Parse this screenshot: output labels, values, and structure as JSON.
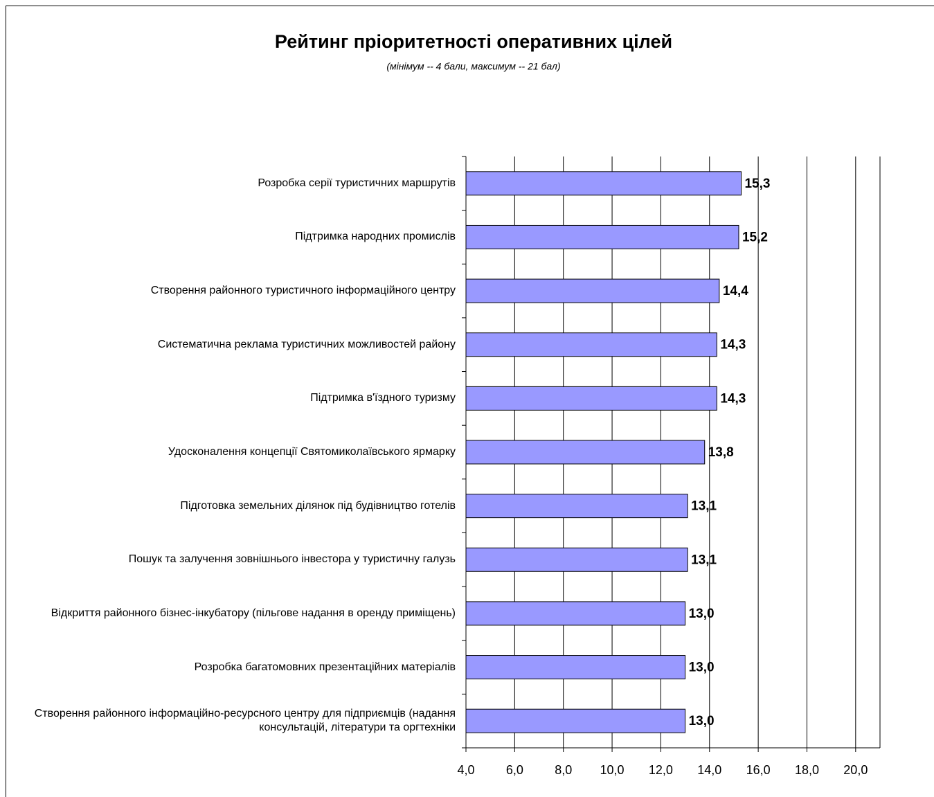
{
  "chart_data": {
    "type": "bar",
    "orientation": "horizontal",
    "title": "Рейтинг пріоритетності оперативних цілей",
    "subtitle": "(мінімум -- 4 бали, максимум -- 21 бал)",
    "categories": [
      "Розробка серії туристичних маршрутів",
      "Підтримка народних промислів",
      "Створення районного туристичного інформаційного центру",
      "Систематична реклама туристичних можливостей району",
      "Підтримка в'їздного туризму",
      "Удосконалення концепції Святомиколаївського ярмарку",
      "Підготовка земельних ділянок під будівництво готелів",
      "Пошук та залучення зовнішнього інвестора у туристичну галузь",
      "Відкриття районного бізнес-інкубатору (пільгове надання в оренду приміщень)",
      "Розробка багатомовних презентаційних матеріалів",
      "Створення районного інформаційно-ресурсного центру для підприємців (надання консультацій, літератури та оргтехніки"
    ],
    "values": [
      15.3,
      15.2,
      14.4,
      14.3,
      14.3,
      13.8,
      13.1,
      13.1,
      13.0,
      13.0,
      13.0
    ],
    "value_labels": [
      "15,3",
      "15,2",
      "14,4",
      "14,3",
      "14,3",
      "13,8",
      "13,1",
      "13,1",
      "13,0",
      "13,0",
      "13,0"
    ],
    "color": "#9999ff",
    "xlim": [
      4,
      21
    ],
    "xticks": [
      {
        "value": 4,
        "label": "4,0"
      },
      {
        "value": 6,
        "label": "6,0"
      },
      {
        "value": 8,
        "label": "8,0"
      },
      {
        "value": 10,
        "label": "10,0"
      },
      {
        "value": 12,
        "label": "12,0"
      },
      {
        "value": 14,
        "label": "14,0"
      },
      {
        "value": 16,
        "label": "16,0"
      },
      {
        "value": 18,
        "label": "18,0"
      },
      {
        "value": 20,
        "label": "20,0"
      }
    ],
    "grid": true
  }
}
